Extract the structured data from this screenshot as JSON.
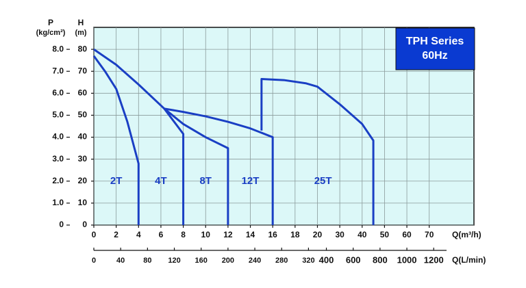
{
  "chart_data": {
    "type": "line",
    "annotation": [
      "TPH Series",
      "60Hz"
    ],
    "y_label": [
      "H",
      "(m)"
    ],
    "y2_label": [
      "P",
      "(kg/cm²)"
    ],
    "x_label": "Q(m³/h)",
    "x2_label": "Q(L/min)",
    "xlim": [
      0,
      90
    ],
    "xticks": [
      0,
      2,
      4,
      6,
      8,
      10,
      12,
      14,
      16,
      18,
      20,
      30,
      40,
      50,
      60,
      70
    ],
    "x2ticks": [
      0,
      40,
      80,
      120,
      160,
      200,
      240,
      280,
      320,
      400,
      600,
      800,
      1000,
      1200
    ],
    "ylim": [
      0,
      90
    ],
    "yticks": [
      0,
      10,
      20,
      30,
      40,
      50,
      60,
      70,
      80
    ],
    "y2lim": [
      0,
      9
    ],
    "y2ticks": [
      0,
      {
        "value": 1,
        "label": "1.0"
      },
      {
        "value": 2,
        "label": "2.0"
      },
      {
        "value": 3,
        "label": "3.0"
      },
      {
        "value": 4,
        "label": "4.0"
      },
      {
        "value": 5,
        "label": "5.0"
      },
      {
        "value": 6,
        "label": "6.0"
      },
      {
        "value": 7,
        "label": "7.0"
      },
      {
        "value": 8,
        "label": "8.0"
      }
    ],
    "grid": true,
    "series": [
      {
        "name": "2T",
        "color": "#1a3fc4",
        "x": [
          0,
          1,
          2,
          3,
          4,
          4
        ],
        "values": [
          77,
          70,
          62,
          47,
          28,
          0
        ]
      },
      {
        "name": "4T",
        "color": "#1a3fc4",
        "x": [
          0,
          2,
          4,
          6.3,
          8,
          8
        ],
        "values": [
          80,
          73,
          64,
          53,
          41.5,
          0
        ]
      },
      {
        "name": "8T",
        "color": "#1a3fc4",
        "x": [
          6.3,
          8,
          10,
          12,
          12
        ],
        "values": [
          53,
          46,
          40,
          35,
          0
        ]
      },
      {
        "name": "12T",
        "color": "#1a3fc4",
        "x": [
          6.3,
          8,
          10,
          12,
          14,
          16,
          16
        ],
        "values": [
          53,
          51.5,
          49.5,
          47,
          44,
          40,
          0
        ]
      },
      {
        "name": "25T",
        "color": "#1a3fc4",
        "x": [
          15,
          15,
          17,
          19,
          20,
          30,
          40,
          45,
          45
        ],
        "values": [
          43,
          66.5,
          66,
          64.5,
          63,
          55,
          46,
          38.5,
          0
        ]
      }
    ]
  }
}
